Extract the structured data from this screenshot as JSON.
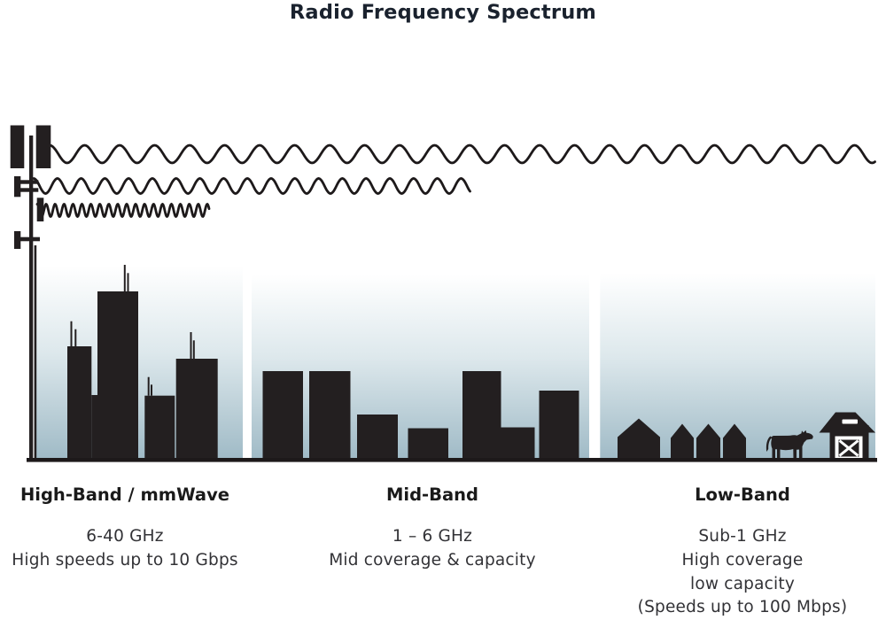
{
  "title": "Radio Frequency Spectrum",
  "bands": [
    {
      "name": "High-Band / mmWave",
      "freq": "6-40 GHz",
      "lines": [
        "High speeds up to 10 Gbps"
      ]
    },
    {
      "name": "Mid-Band",
      "freq": "1 – 6 GHz",
      "lines": [
        "Mid coverage & capacity"
      ]
    },
    {
      "name": "Low-Band",
      "freq": "Sub-1 GHz",
      "lines": [
        "High coverage",
        "low capacity",
        "(Speeds up to 100 Mbps)"
      ]
    }
  ],
  "icons": {
    "tower": "cell-tower-icon",
    "low_band_wave": "long-wavelength-wave-icon",
    "mid_band_wave": "medium-wavelength-wave-icon",
    "high_band_wave": "short-wavelength-wave-icon",
    "high_band_scene": "city-skyline-icon",
    "mid_band_scene": "mid-rise-buildings-icon",
    "low_band_scene": [
      "house-icon",
      "house-icon",
      "house-icon",
      "house-icon",
      "cow-icon",
      "barn-icon"
    ]
  },
  "colors": {
    "silhouette": "#231f20",
    "sky_gradient_top": "#ffffff",
    "sky_gradient_bottom": "#9fbac6",
    "title_text": "#1a222e",
    "band_title_text": "#1a1a1a",
    "body_text": "#323236"
  }
}
